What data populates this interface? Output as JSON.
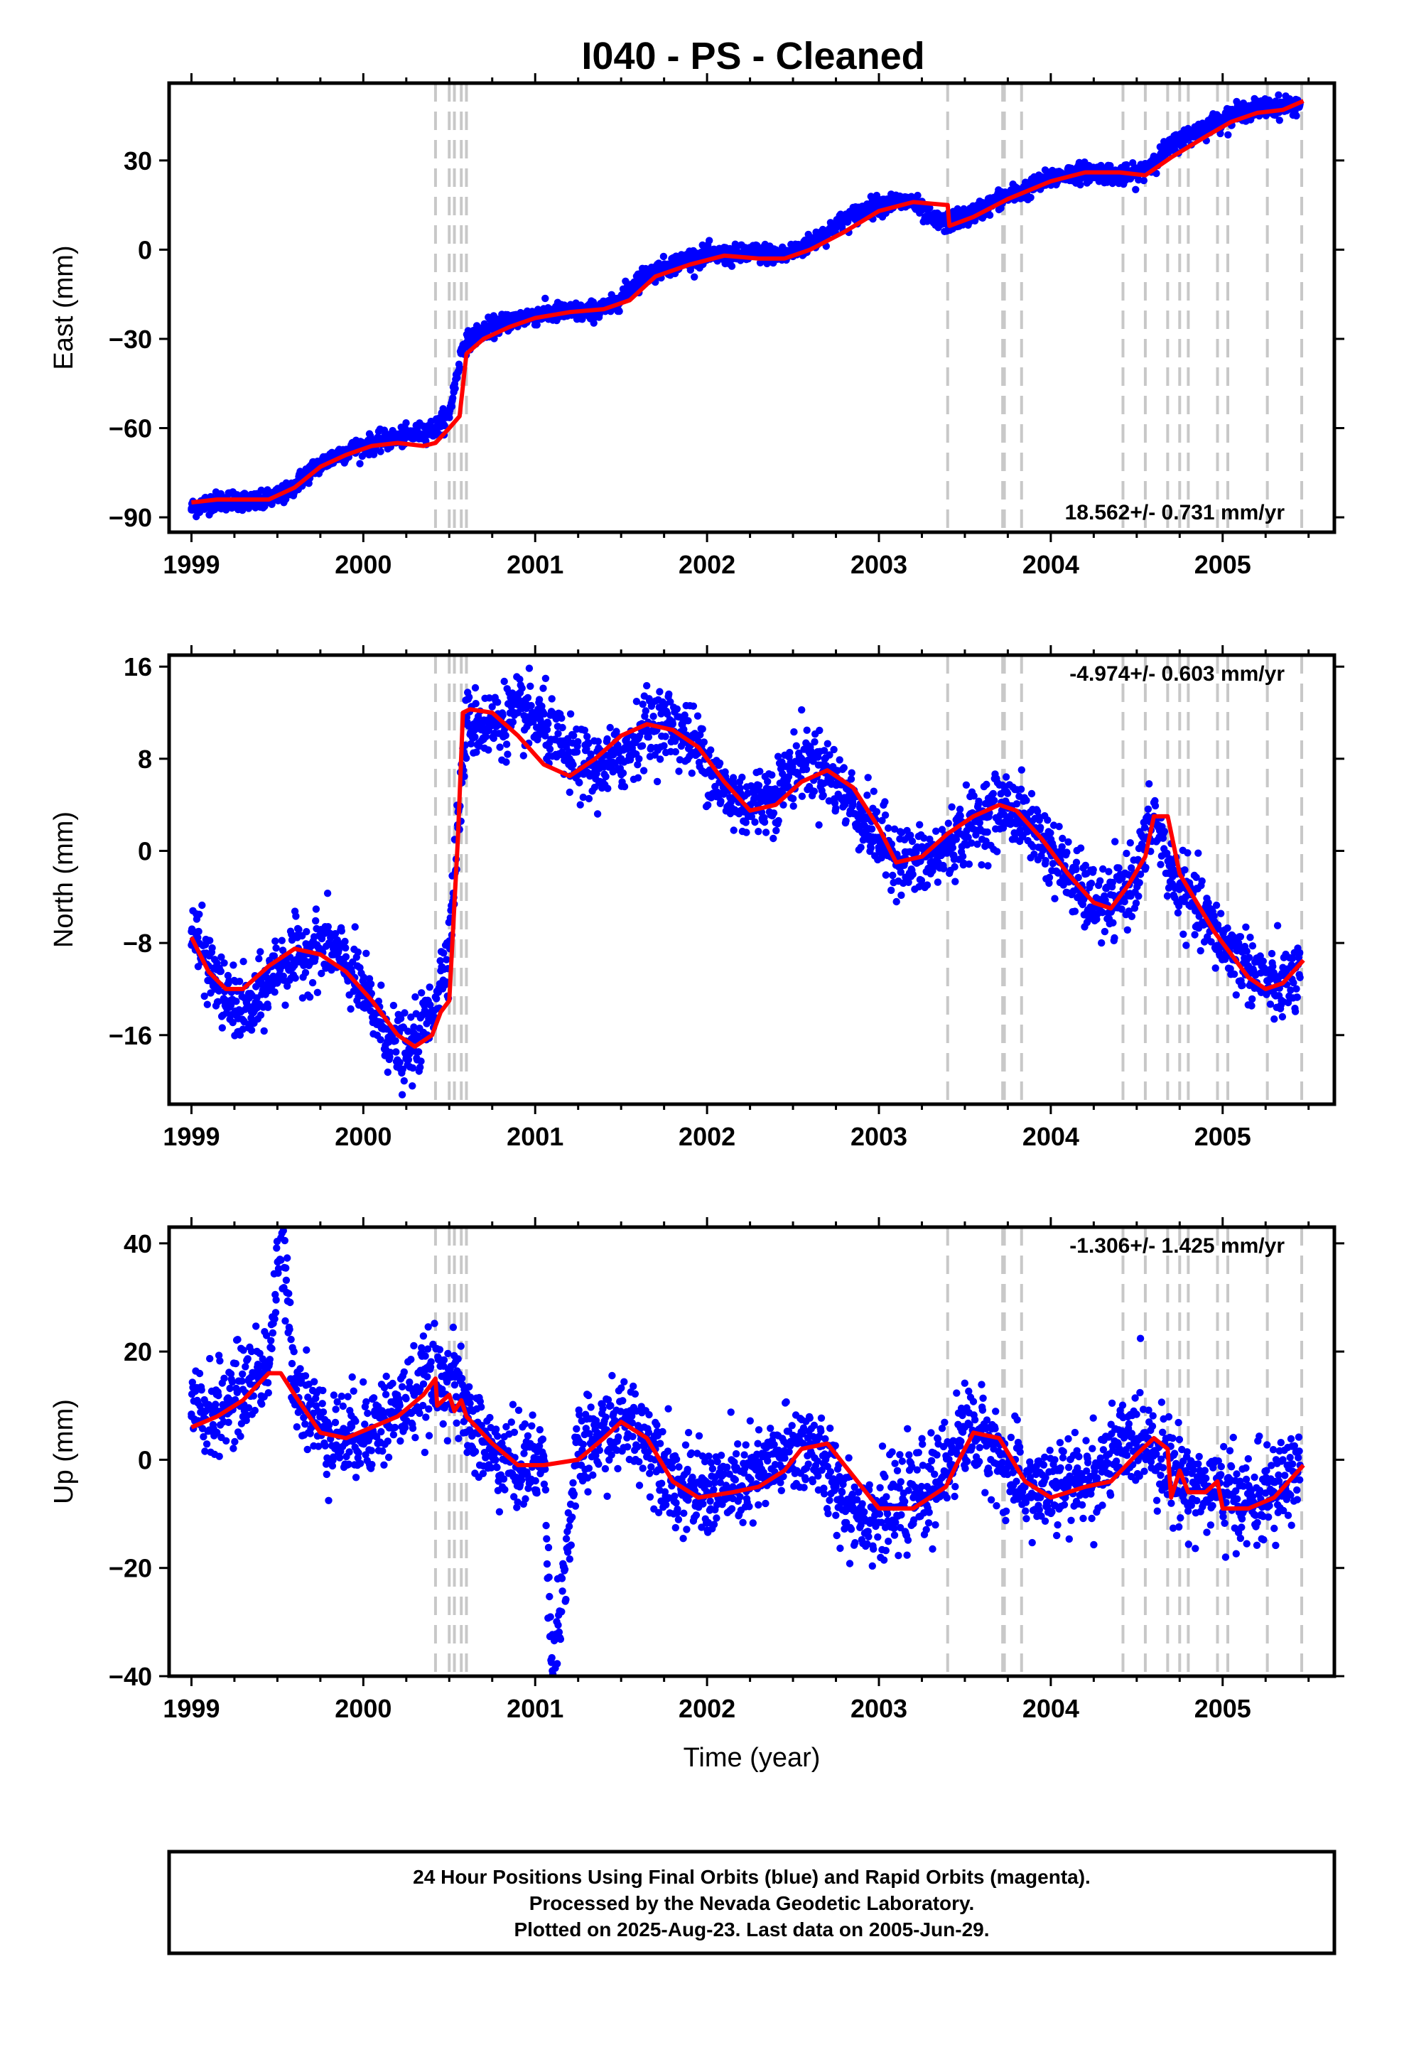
{
  "title": "I040  - PS - Cleaned",
  "footer": {
    "line1": "24 Hour Positions Using Final Orbits (blue) and Rapid Orbits (magenta).",
    "line2": "Processed by the Nevada Geodetic Laboratory.",
    "line3": "Plotted on 2025-Aug-23. Last data on 2005-Jun-29."
  },
  "colors": {
    "final_orbits": "#0000ff",
    "model": "#ff0000",
    "breaks": "#c8c8c8"
  },
  "chart_data": [
    {
      "type": "scatter",
      "ylabel": "East (mm)",
      "xlim": [
        1998.87,
        2005.65
      ],
      "ylim": [
        -95,
        56
      ],
      "yticks": [
        -90,
        -60,
        -30,
        0,
        30
      ],
      "xticks": [
        1999,
        2000,
        2001,
        2002,
        2003,
        2004,
        2005
      ],
      "rate_label": "18.562+/- 0.731 mm/yr",
      "rate_position": "bottom-right",
      "breaks": [
        2000.42,
        2000.5,
        2000.53,
        2000.57,
        2000.6,
        2003.4,
        2003.72,
        2003.73,
        2003.83,
        2004.42,
        2004.55,
        2004.68,
        2004.75,
        2004.8,
        2004.97,
        2005.03,
        2005.26,
        2005.46
      ],
      "series": [
        {
          "name": "Final Orbits (blue)",
          "x": [
            1999.0,
            1999.1,
            1999.25,
            1999.4,
            1999.55,
            1999.7,
            1999.85,
            2000.0,
            2000.15,
            2000.3,
            2000.42,
            2000.5,
            2000.58,
            2000.7,
            2000.85,
            2001.0,
            2001.15,
            2001.3,
            2001.45,
            2001.6,
            2001.75,
            2001.9,
            2002.0,
            2002.15,
            2002.3,
            2002.45,
            2002.6,
            2002.75,
            2002.9,
            2003.0,
            2003.1,
            2003.2,
            2003.3,
            2003.38,
            2003.45,
            2003.55,
            2003.7,
            2003.85,
            2004.0,
            2004.15,
            2004.3,
            2004.4,
            2004.5,
            2004.6,
            2004.75,
            2004.9,
            2005.0,
            2005.15,
            2005.3,
            2005.45
          ],
          "y": [
            -87,
            -85,
            -84,
            -85,
            -82,
            -74,
            -69,
            -66,
            -64,
            -62,
            -60,
            -55,
            -32,
            -27,
            -24,
            -22,
            -21,
            -21,
            -19,
            -10,
            -6,
            -3,
            -2,
            -2,
            -1,
            -2,
            2,
            8,
            13,
            15,
            16,
            16,
            10,
            9,
            10,
            12,
            17,
            20,
            24,
            26,
            26,
            25,
            25,
            30,
            37,
            41,
            44,
            47,
            48,
            49
          ]
        },
        {
          "name": "Model",
          "x": [
            1999.0,
            1999.15,
            1999.3,
            1999.45,
            1999.6,
            1999.75,
            1999.9,
            2000.05,
            2000.2,
            2000.35,
            2000.42,
            2000.5,
            2000.56,
            2000.6,
            2000.7,
            2000.85,
            2001.0,
            2001.2,
            2001.4,
            2001.55,
            2001.7,
            2001.9,
            2002.1,
            2002.3,
            2002.45,
            2002.6,
            2002.8,
            2003.0,
            2003.2,
            2003.4,
            2003.41,
            2003.55,
            2003.75,
            2004.0,
            2004.2,
            2004.4,
            2004.55,
            2004.7,
            2004.9,
            2005.05,
            2005.2,
            2005.35,
            2005.47
          ],
          "y": [
            -85,
            -84,
            -84,
            -84,
            -80,
            -73,
            -69,
            -66,
            -65,
            -66,
            -65,
            -60,
            -56,
            -35,
            -30,
            -26,
            -23,
            -21,
            -20,
            -17,
            -9,
            -5,
            -2,
            -3,
            -3,
            0,
            6,
            13,
            16,
            15,
            8,
            11,
            17,
            23,
            26,
            26,
            25,
            31,
            38,
            43,
            46,
            47,
            50
          ]
        }
      ]
    },
    {
      "type": "scatter",
      "ylabel": "North (mm)",
      "xlim": [
        1998.87,
        2005.65
      ],
      "ylim": [
        -22,
        17
      ],
      "yticks": [
        -16,
        -8,
        0,
        8,
        16
      ],
      "xticks": [
        1999,
        2000,
        2001,
        2002,
        2003,
        2004,
        2005
      ],
      "rate_label": "-4.974+/- 0.603 mm/yr",
      "rate_position": "top-right",
      "breaks": [
        2000.42,
        2000.5,
        2000.53,
        2000.57,
        2000.6,
        2003.4,
        2003.72,
        2003.73,
        2003.83,
        2004.42,
        2004.55,
        2004.68,
        2004.75,
        2004.8,
        2004.97,
        2005.03,
        2005.26,
        2005.46
      ],
      "series": [
        {
          "name": "Final Orbits (blue)",
          "x": [
            1999.0,
            1999.1,
            1999.2,
            1999.35,
            1999.5,
            1999.65,
            1999.8,
            1999.95,
            2000.1,
            2000.25,
            2000.4,
            2000.5,
            2000.55,
            2000.6,
            2000.75,
            2000.9,
            2001.05,
            2001.2,
            2001.35,
            2001.5,
            2001.65,
            2001.8,
            2001.95,
            2002.1,
            2002.25,
            2002.4,
            2002.55,
            2002.7,
            2002.85,
            2003.0,
            2003.15,
            2003.3,
            2003.45,
            2003.6,
            2003.75,
            2003.9,
            2004.05,
            2004.2,
            2004.35,
            2004.5,
            2004.6,
            2004.7,
            2004.85,
            2005.0,
            2005.15,
            2005.3,
            2005.45
          ],
          "y": [
            -7,
            -10,
            -13,
            -14,
            -10,
            -9,
            -8,
            -11,
            -15,
            -18,
            -14,
            -8,
            2,
            11,
            11,
            12,
            11,
            8,
            7,
            8,
            11,
            11,
            9,
            5,
            4,
            5,
            8,
            7,
            4,
            1,
            -1,
            -1,
            1,
            3,
            4,
            2,
            -1,
            -4,
            -5,
            -2,
            3,
            -2,
            -5,
            -8,
            -10,
            -12,
            -11
          ]
        },
        {
          "name": "Model",
          "x": [
            1999.0,
            1999.1,
            1999.2,
            1999.3,
            1999.45,
            1999.6,
            1999.75,
            1999.9,
            2000.05,
            2000.2,
            2000.3,
            2000.4,
            2000.45,
            2000.5,
            2000.55,
            2000.58,
            2000.62,
            2000.75,
            2000.9,
            2001.05,
            2001.2,
            2001.35,
            2001.5,
            2001.65,
            2001.8,
            2001.95,
            2002.1,
            2002.25,
            2002.4,
            2002.55,
            2002.7,
            2002.85,
            2003.0,
            2003.1,
            2003.25,
            2003.4,
            2003.55,
            2003.7,
            2003.8,
            2003.95,
            2004.1,
            2004.25,
            2004.35,
            2004.45,
            2004.55,
            2004.6,
            2004.68,
            2004.75,
            2004.85,
            2004.95,
            2005.05,
            2005.15,
            2005.25,
            2005.35,
            2005.47
          ],
          "y": [
            -7.5,
            -10.5,
            -12,
            -12,
            -10,
            -8.5,
            -9,
            -10.5,
            -13,
            -16,
            -17,
            -16,
            -14,
            -13,
            1,
            12,
            12.3,
            12,
            10,
            7.5,
            6.5,
            8,
            10,
            11,
            10.5,
            9,
            6,
            3.5,
            4,
            6,
            7,
            5.5,
            2,
            -1,
            -0.5,
            1.5,
            3,
            4,
            3.5,
            1,
            -2,
            -4.5,
            -5,
            -3,
            -0.5,
            3,
            3,
            -2,
            -4.5,
            -7,
            -9,
            -11,
            -12,
            -11.5,
            -9.5
          ]
        }
      ]
    },
    {
      "type": "scatter",
      "ylabel": "Up (mm)",
      "xlabel": "Time (year)",
      "xlim": [
        1998.87,
        2005.65
      ],
      "ylim": [
        -40,
        43
      ],
      "yticks": [
        -40,
        -20,
        0,
        20,
        40
      ],
      "xticks": [
        1999,
        2000,
        2001,
        2002,
        2003,
        2004,
        2005
      ],
      "rate_label": "-1.306+/- 1.425 mm/yr",
      "rate_position": "top-right",
      "breaks": [
        2000.42,
        2000.5,
        2000.53,
        2000.57,
        2000.6,
        2003.4,
        2003.72,
        2003.73,
        2003.83,
        2004.42,
        2004.55,
        2004.68,
        2004.75,
        2004.8,
        2004.97,
        2005.03,
        2005.26,
        2005.46
      ],
      "series": [
        {
          "name": "Final Orbits (blue)",
          "x": [
            1999.0,
            1999.15,
            1999.3,
            1999.45,
            1999.52,
            1999.6,
            1999.75,
            1999.9,
            2000.05,
            2000.2,
            2000.35,
            2000.5,
            2000.6,
            2000.75,
            2000.9,
            2001.05,
            2001.1,
            2001.25,
            2001.4,
            2001.55,
            2001.7,
            2001.85,
            2002.0,
            2002.15,
            2002.3,
            2002.45,
            2002.6,
            2002.75,
            2002.9,
            2003.05,
            2003.2,
            2003.35,
            2003.5,
            2003.65,
            2003.8,
            2003.95,
            2004.1,
            2004.25,
            2004.4,
            2004.55,
            2004.7,
            2004.85,
            2005.0,
            2005.15,
            2005.3,
            2005.45
          ],
          "y": [
            8,
            9,
            13,
            18,
            41,
            15,
            6,
            4,
            6,
            9,
            14,
            16,
            8,
            1,
            -1,
            0,
            -39,
            1,
            5,
            7,
            2,
            -6,
            -6,
            -5,
            -3,
            1,
            3,
            -5,
            -10,
            -10,
            -7,
            -4,
            6,
            3,
            -4,
            -6,
            -5,
            -3,
            2,
            5,
            -2,
            -5,
            -6,
            -8,
            -6,
            -1
          ]
        },
        {
          "name": "Model",
          "x": [
            1999.0,
            1999.15,
            1999.3,
            1999.45,
            1999.52,
            1999.6,
            1999.75,
            1999.9,
            2000.05,
            2000.2,
            2000.35,
            2000.42,
            2000.43,
            2000.5,
            2000.53,
            2000.57,
            2000.6,
            2000.75,
            2000.9,
            2001.05,
            2001.25,
            2001.4,
            2001.5,
            2001.65,
            2001.8,
            2001.95,
            2002.15,
            2002.3,
            2002.45,
            2002.55,
            2002.7,
            2002.85,
            2003.0,
            2003.2,
            2003.39,
            2003.45,
            2003.55,
            2003.7,
            2003.85,
            2004.0,
            2004.2,
            2004.35,
            2004.5,
            2004.6,
            2004.68,
            2004.7,
            2004.75,
            2004.8,
            2004.9,
            2004.97,
            2005.0,
            2005.15,
            2005.3,
            2005.47
          ],
          "y": [
            6,
            8,
            11,
            16,
            16,
            12,
            5,
            4,
            6,
            8,
            12,
            15,
            10,
            12,
            9,
            11,
            8,
            3,
            -1,
            -1,
            0,
            4,
            7,
            4,
            -4,
            -7,
            -6,
            -5,
            -2,
            2,
            3,
            -3,
            -9,
            -9,
            -5,
            -1,
            5,
            4,
            -4,
            -7,
            -5,
            -4,
            1,
            4,
            2,
            -7,
            -2,
            -6,
            -6,
            -4,
            -9,
            -9,
            -7,
            -1
          ]
        }
      ]
    }
  ]
}
